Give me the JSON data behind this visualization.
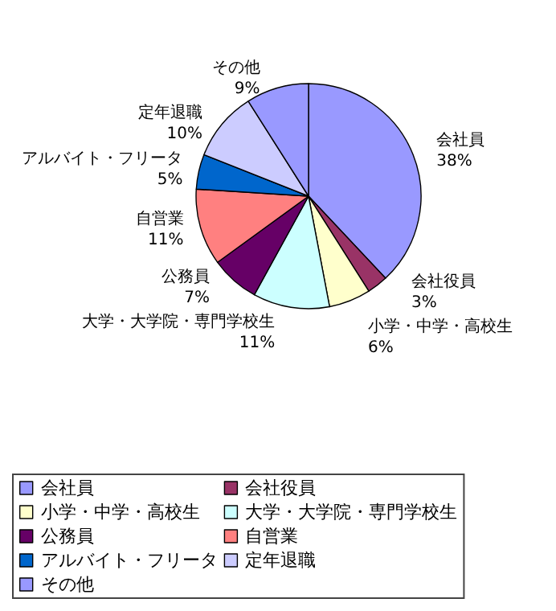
{
  "chart_data": {
    "type": "pie",
    "categories": [
      "会社員",
      "会社役員",
      "小学・中学・高校生",
      "大学・大学院・専門学校生",
      "公務員",
      "自営業",
      "アルバイト・フリータ",
      "定年退職",
      "その他"
    ],
    "values": [
      38,
      3,
      6,
      11,
      7,
      11,
      5,
      10,
      9
    ],
    "value_labels": [
      "38%",
      "3%",
      "6%",
      "11%",
      "7%",
      "11%",
      "5%",
      "10%",
      "9%"
    ],
    "colors": [
      "#9999ff",
      "#993366",
      "#ffffcc",
      "#ccffff",
      "#660066",
      "#ff8080",
      "#0066cc",
      "#ccccff",
      "#9999ff"
    ],
    "legend": "bottom"
  }
}
